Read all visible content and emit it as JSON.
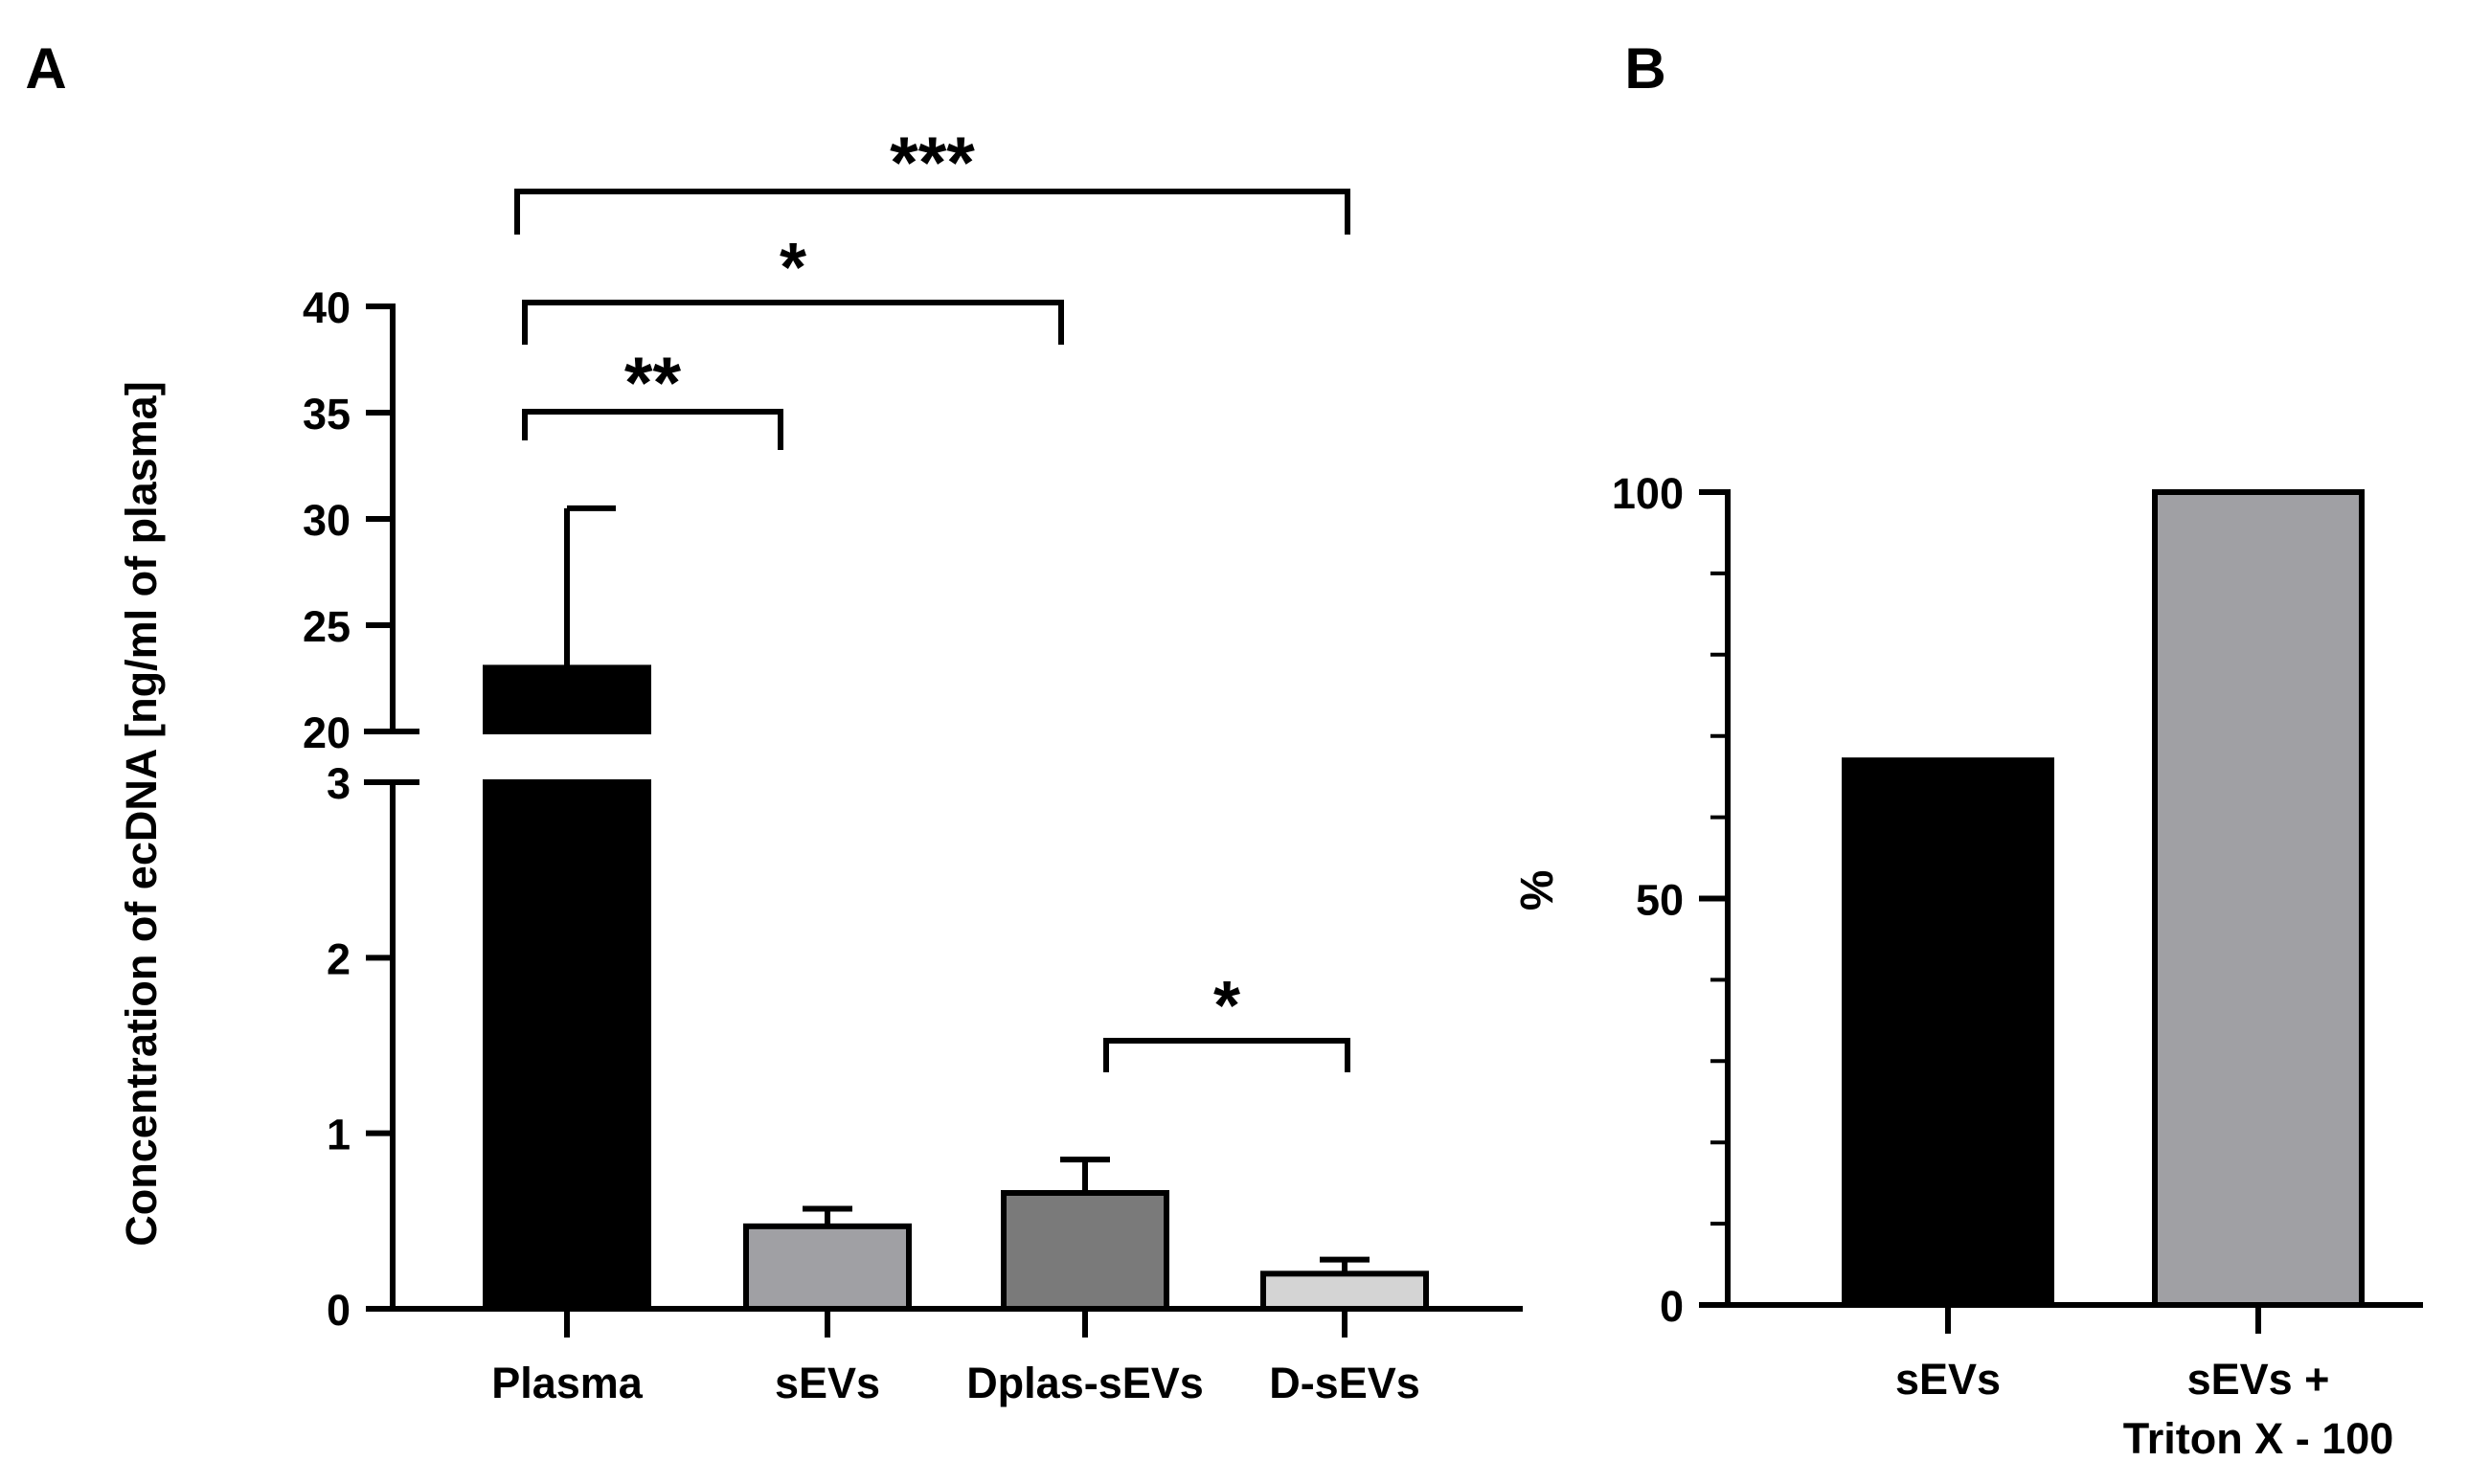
{
  "chart_data": [
    {
      "panel": "A",
      "type": "bar",
      "ylabel": "Concentration of ecDNA [ng/ml of plasma]",
      "axis_break": {
        "lower_range": [
          0,
          3
        ],
        "upper_range": [
          20,
          40
        ]
      },
      "lower_ticks": [
        0,
        1,
        2,
        3
      ],
      "upper_ticks": [
        20,
        25,
        30,
        35,
        40
      ],
      "categories": [
        "Plasma",
        "sEVs",
        "Dplas-sEVs",
        "D-sEVs"
      ],
      "values": [
        23.0,
        0.47,
        0.66,
        0.2
      ],
      "errors": [
        7.5,
        0.1,
        0.19,
        0.08
      ],
      "colors": [
        "#000000",
        "#a0a0a4",
        "#7a7a7a",
        "#d4d4d4"
      ],
      "significance": [
        {
          "from": "Plasma",
          "to": "sEVs",
          "label": "**"
        },
        {
          "from": "Plasma",
          "to": "Dplas-sEVs",
          "label": "*"
        },
        {
          "from": "Plasma",
          "to": "D-sEVs",
          "label": "***"
        },
        {
          "from": "Dplas-sEVs",
          "to": "D-sEVs",
          "label": "*"
        }
      ]
    },
    {
      "panel": "B",
      "type": "bar",
      "ylabel": "%",
      "ylim": [
        0,
        100
      ],
      "ticks": [
        0,
        50,
        100
      ],
      "categories": [
        [
          "sEVs"
        ],
        [
          "sEVs +",
          "Triton X - 100"
        ]
      ],
      "values": [
        67,
        100
      ],
      "colors": [
        "#000000",
        "#a0a0a4"
      ]
    }
  ]
}
